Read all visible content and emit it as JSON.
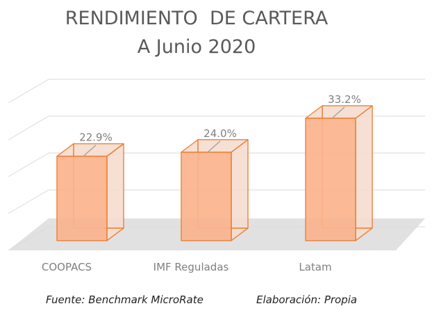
{
  "chart_data": {
    "type": "bar",
    "style": "3d-column",
    "title": "RENDIMIENTO  DE CARTERA",
    "subtitle": "A Junio 2020",
    "categories": [
      "COOPACS",
      "IMF Reguladas",
      "Latam"
    ],
    "values": [
      22.9,
      24.0,
      33.2
    ],
    "data_labels": [
      "22.9%",
      "24.0%",
      "33.2%"
    ],
    "xlabel": "",
    "ylabel": "",
    "ylim": [
      0,
      40
    ],
    "grid": true,
    "legend": "none"
  },
  "footer": {
    "source": "Fuente: Benchmark MicroRate",
    "credit": "Elaboración: Propia"
  },
  "colors": {
    "bar_front": "#fbb48e",
    "bar_side": "#f6ddd0",
    "bar_stroke": "#ee7d31",
    "floor": "#d9d9d9",
    "grid": "#d9d9d9",
    "text": "#595959",
    "label": "#7f7f7f",
    "leader": "#a6a6a6"
  }
}
